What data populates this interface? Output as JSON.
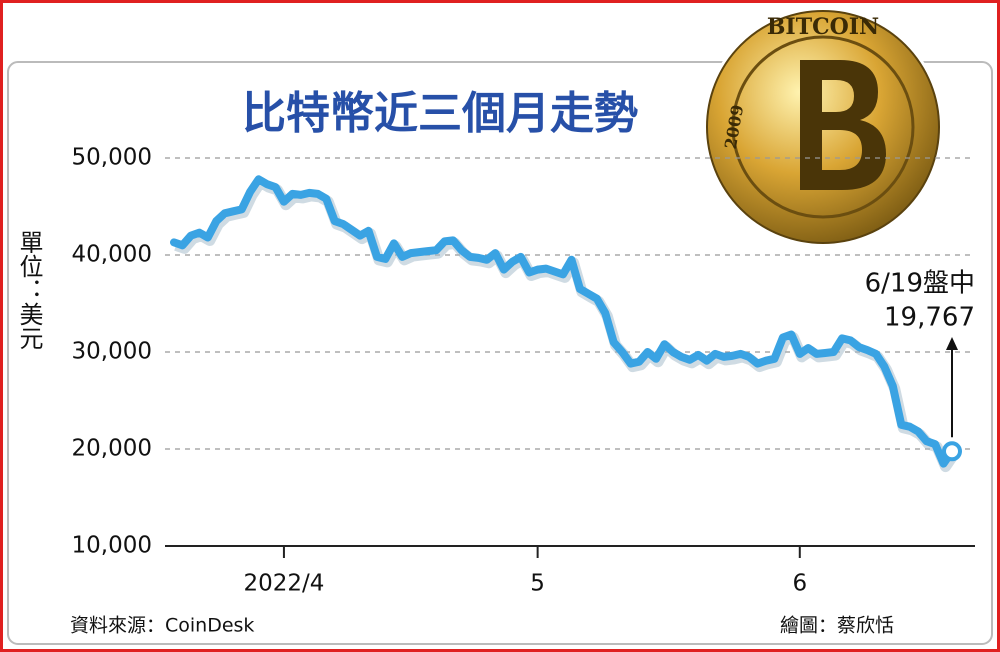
{
  "chart_data": {
    "type": "line",
    "title": "比特幣近三個月走勢",
    "y_label": "單位：美元",
    "source": "資料來源：CoinDesk",
    "credit": "繪圖：蔡欣恬",
    "coin": {
      "inscription": "BITCOIN",
      "year": "2009"
    },
    "annotation": {
      "text": "6/19盤中",
      "label": "19,767"
    },
    "color": "#3aa3e3",
    "grid": true,
    "ylim": [
      10000,
      50000
    ],
    "yticks": [
      {
        "value": 10000,
        "label": "10,000"
      },
      {
        "value": 20000,
        "label": "20,000"
      },
      {
        "value": 30000,
        "label": "30,000"
      },
      {
        "value": 40000,
        "label": "40,000"
      },
      {
        "value": 50000,
        "label": "50,000"
      }
    ],
    "categories": [
      null,
      null,
      null,
      null,
      null,
      null,
      null,
      null,
      null,
      null,
      null,
      null,
      null,
      "2022/4",
      null,
      null,
      null,
      null,
      null,
      null,
      null,
      null,
      null,
      null,
      null,
      null,
      null,
      null,
      null,
      null,
      null,
      null,
      null,
      null,
      null,
      null,
      null,
      null,
      null,
      null,
      null,
      null,
      null,
      "5",
      null,
      null,
      null,
      null,
      null,
      null,
      null,
      null,
      null,
      null,
      null,
      null,
      null,
      null,
      null,
      null,
      null,
      null,
      null,
      null,
      null,
      null,
      null,
      null,
      null,
      null,
      null,
      null,
      null,
      null,
      "6",
      null,
      null,
      null,
      null,
      null,
      null,
      null,
      null,
      null,
      null,
      null,
      null,
      null,
      null,
      null,
      null,
      null,
      null
    ],
    "values": [
      41300,
      41000,
      42000,
      42300,
      41800,
      43500,
      44300,
      44500,
      44700,
      46500,
      47800,
      47300,
      47000,
      45500,
      46300,
      46200,
      46400,
      46300,
      45800,
      43500,
      43200,
      42600,
      42000,
      42500,
      39800,
      39600,
      41200,
      39800,
      40200,
      40300,
      40400,
      40500,
      41400,
      41500,
      40500,
      39800,
      39700,
      39500,
      40200,
      38500,
      39300,
      39800,
      38200,
      38500,
      38600,
      38300,
      38000,
      39500,
      36500,
      36000,
      35500,
      34000,
      31000,
      30000,
      28800,
      29000,
      30000,
      29300,
      30800,
      30000,
      29500,
      29200,
      29700,
      29100,
      29800,
      29500,
      29600,
      29800,
      29500,
      28800,
      29100,
      29300,
      31500,
      31800,
      29800,
      30400,
      29800,
      29900,
      30000,
      31400,
      31200,
      30500,
      30200,
      29800,
      28500,
      26500,
      22500,
      22300,
      21800,
      20800,
      20500,
      18500,
      19767
    ]
  }
}
